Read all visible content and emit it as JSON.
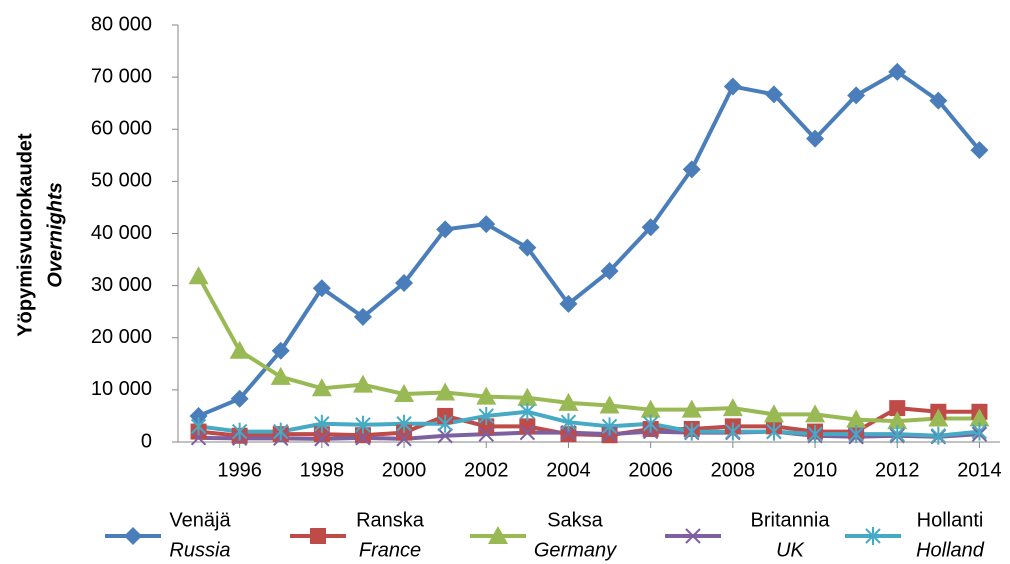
{
  "chart_data": {
    "type": "line",
    "y_label": "Yöpymisvuorokaudet",
    "y_label_sub": "Overnights",
    "x": [
      1995,
      1996,
      1997,
      1998,
      1999,
      2000,
      2001,
      2002,
      2003,
      2004,
      2005,
      2006,
      2007,
      2008,
      2009,
      2010,
      2011,
      2012,
      2013,
      2014
    ],
    "xlim": [
      1994.5,
      2014.5
    ],
    "xticks": [
      1996,
      1998,
      2000,
      2002,
      2004,
      2006,
      2008,
      2010,
      2012,
      2014
    ],
    "ylim": [
      0,
      80000
    ],
    "yticks": [
      0,
      {
        "value": 10000,
        "label": "10 000"
      },
      {
        "value": 20000,
        "label": "20 000"
      },
      {
        "value": 30000,
        "label": "30 000"
      },
      {
        "value": 40000,
        "label": "40 000"
      },
      {
        "value": 50000,
        "label": "50 000"
      },
      {
        "value": 60000,
        "label": "60 000"
      },
      {
        "value": 70000,
        "label": "70 000"
      },
      {
        "value": 80000,
        "label": "80 000"
      }
    ],
    "grid": false,
    "legend": "bottom",
    "series": [
      {
        "name": "Venäjä",
        "subname": "Russia",
        "color": "#4a7ebb",
        "marker": "diamond",
        "values": [
          5000,
          8300,
          17500,
          29500,
          24000,
          30500,
          40800,
          41800,
          37300,
          26500,
          32800,
          41200,
          52300,
          68200,
          66700,
          58200,
          66500,
          71000,
          65500,
          56000
        ]
      },
      {
        "name": "Ranska",
        "subname": "France",
        "color": "#be4b48",
        "marker": "square",
        "values": [
          2000,
          1200,
          1500,
          1500,
          1300,
          1800,
          5000,
          3000,
          3000,
          1500,
          1300,
          2500,
          2500,
          3000,
          3000,
          2000,
          2000,
          6500,
          5800,
          5800
        ]
      },
      {
        "name": "Saksa",
        "subname": "Germany",
        "color": "#98b954",
        "marker": "triangle",
        "values": [
          31800,
          17500,
          12500,
          10300,
          11000,
          9200,
          9500,
          8700,
          8500,
          7500,
          7000,
          6200,
          6200,
          6500,
          5300,
          5300,
          4300,
          4000,
          4500,
          4500
        ]
      },
      {
        "name": "Britannia",
        "subname": "UK",
        "color": "#7d60a0",
        "marker": "x",
        "values": [
          800,
          700,
          700,
          600,
          800,
          600,
          1200,
          1500,
          1800,
          1800,
          1500,
          2000,
          1800,
          1800,
          2000,
          1200,
          1000,
          1200,
          1000,
          1500
        ]
      },
      {
        "name": "Hollanti",
        "subname": "Holland",
        "color": "#46aac5",
        "marker": "star",
        "values": [
          3000,
          2000,
          2000,
          3500,
          3300,
          3500,
          3500,
          5000,
          5800,
          3800,
          3000,
          3500,
          2000,
          2000,
          2000,
          1500,
          1500,
          1500,
          1200,
          2000
        ]
      }
    ]
  }
}
